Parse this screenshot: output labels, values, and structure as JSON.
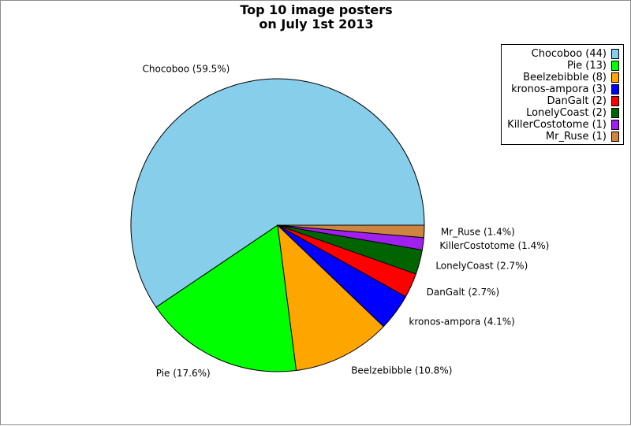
{
  "chart_data": {
    "type": "pie",
    "title_lines": [
      "Top 10 image posters",
      "on July 1st 2013"
    ],
    "slices": [
      {
        "name": "Chocoboo",
        "value": 44,
        "label": "Chocoboo (59.5%)",
        "legend": "Chocoboo (44)",
        "color": "#87ceeb"
      },
      {
        "name": "Pie",
        "value": 13,
        "label": "Pie (17.6%)",
        "legend": "Pie (13)",
        "color": "#00ff00"
      },
      {
        "name": "Beelzebibble",
        "value": 8,
        "label": "Beelzebibble (10.8%)",
        "legend": "Beelzebibble (8)",
        "color": "#ffa500"
      },
      {
        "name": "kronos-ampora",
        "value": 3,
        "label": "kronos-ampora (4.1%)",
        "legend": "kronos-ampora (3)",
        "color": "#0000ff"
      },
      {
        "name": "DanGalt",
        "value": 2,
        "label": "DanGalt (2.7%)",
        "legend": "DanGalt (2)",
        "color": "#ff0000"
      },
      {
        "name": "LonelyCoast",
        "value": 2,
        "label": "LonelyCoast (2.7%)",
        "legend": "LonelyCoast (2)",
        "color": "#006400"
      },
      {
        "name": "KillerCostotome",
        "value": 1,
        "label": "KillerCostotome (1.4%)",
        "legend": "KillerCostotome (1)",
        "color": "#a020f0"
      },
      {
        "name": "Mr_Ruse",
        "value": 1,
        "label": "Mr_Ruse (1.4%)",
        "legend": "Mr_Ruse (1)",
        "color": "#cd853f"
      }
    ],
    "legend_position": "top-right"
  }
}
